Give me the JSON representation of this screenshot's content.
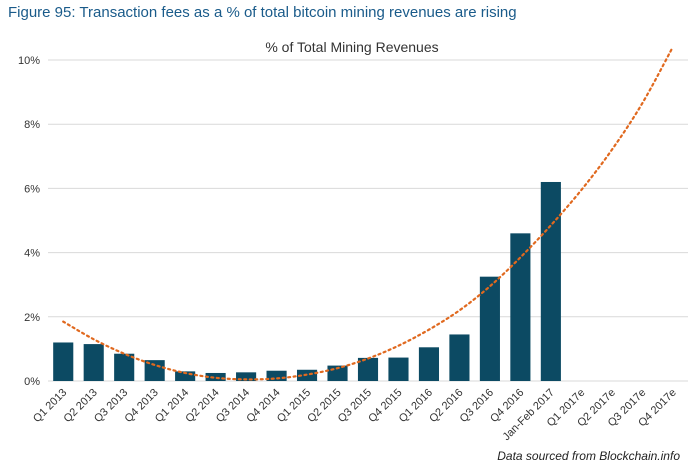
{
  "figure_title": "Figure 95: Transaction fees as a % of total bitcoin mining revenues are rising",
  "source_note": "Data sourced from Blockchain.info",
  "colors": {
    "title": "#1a5b8a",
    "bar": "#0c4a63",
    "trend": "#e0691f",
    "grid": "#d9d9d9",
    "text": "#333333"
  },
  "chart_data": {
    "type": "bar",
    "title": "% of Total Mining Revenues",
    "xlabel": "",
    "ylabel": "",
    "ylim": [
      0,
      10
    ],
    "yticks": [
      0,
      2,
      4,
      6,
      8,
      10
    ],
    "ytick_labels": [
      "0%",
      "2%",
      "4%",
      "6%",
      "8%",
      "10%"
    ],
    "grid": true,
    "categories": [
      "Q1 2013",
      "Q2 2013",
      "Q3 2013",
      "Q4 2013",
      "Q1 2014",
      "Q2 2014",
      "Q3 2014",
      "Q4 2014",
      "Q1 2015",
      "Q2 2015",
      "Q3 2015",
      "Q4 2015",
      "Q1 2016",
      "Q2 2016",
      "Q3 2016",
      "Q4 2016",
      "Jan-Feb 2017",
      "Q1 2017e",
      "Q2 2017e",
      "Q3 2017e",
      "Q4 2017e"
    ],
    "values": [
      1.2,
      1.15,
      0.85,
      0.65,
      0.3,
      0.25,
      0.27,
      0.32,
      0.35,
      0.48,
      0.72,
      0.73,
      1.05,
      1.45,
      3.25,
      4.6,
      6.2,
      null,
      null,
      null,
      null
    ],
    "trendline": {
      "style": "dotted",
      "points": [
        [
          0,
          1.85
        ],
        [
          1,
          1.3
        ],
        [
          2,
          0.85
        ],
        [
          3,
          0.5
        ],
        [
          4,
          0.25
        ],
        [
          5,
          0.1
        ],
        [
          6,
          0.05
        ],
        [
          7,
          0.08
        ],
        [
          8,
          0.2
        ],
        [
          9,
          0.4
        ],
        [
          10,
          0.7
        ],
        [
          11,
          1.1
        ],
        [
          12,
          1.6
        ],
        [
          13,
          2.2
        ],
        [
          14,
          2.95
        ],
        [
          15,
          3.85
        ],
        [
          16,
          4.85
        ],
        [
          17,
          5.95
        ],
        [
          18,
          7.2
        ],
        [
          19,
          8.65
        ],
        [
          20,
          10.4
        ]
      ]
    }
  }
}
